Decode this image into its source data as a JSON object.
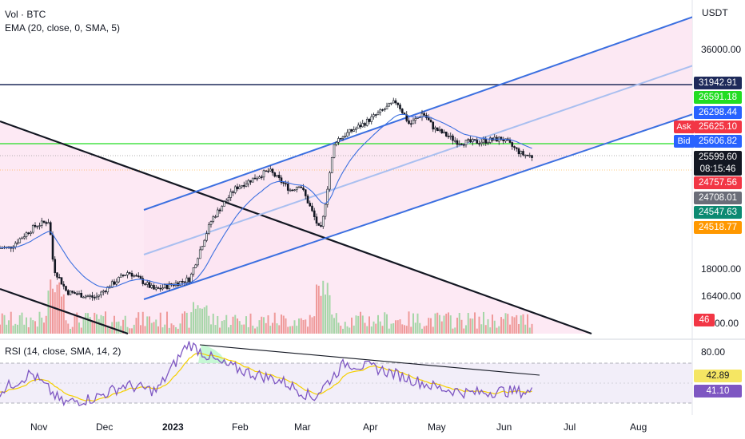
{
  "chart_data": [
    {
      "type": "candlestick",
      "legend": {
        "symbol": "Vol · BTC",
        "indicator": "EMA (20, close, 0, SMA, 5)"
      },
      "currency": "USDT",
      "y_axis_labels": [
        "36000.00",
        "18000.00",
        "16400.00",
        "00.00"
      ],
      "x_axis_labels": [
        "Nov",
        "Dec",
        "2023",
        "Feb",
        "Mar",
        "Apr",
        "May",
        "Jun",
        "Jul",
        "Aug"
      ],
      "price_tags": [
        {
          "label": "31942.91",
          "color": "#1e2a5a"
        },
        {
          "label": "26591.18",
          "color": "#22dd22"
        },
        {
          "label": "26298.44",
          "color": "#2962ff"
        },
        {
          "label": "25625.10",
          "color": "#f23645",
          "side": "Ask"
        },
        {
          "label": "25606.82",
          "color": "#2962ff",
          "side": "Bid"
        },
        {
          "label": "25599.60",
          "color": "#131722"
        },
        {
          "label": "08:15:46",
          "color": "#131722"
        },
        {
          "label": "24757.56",
          "color": "#f23645"
        },
        {
          "label": "24708.01",
          "color": "#6a6d78"
        },
        {
          "label": "24547.63",
          "color": "#0c8a72"
        },
        {
          "label": "24518.77",
          "color": "#ff9800"
        },
        {
          "label": "46",
          "color": "#f23645"
        }
      ],
      "approx_closes": {
        "dates": [
          "Oct 20",
          "Nov 01",
          "Nov 07",
          "Nov 09",
          "Nov 15",
          "Nov 28",
          "Dec 13",
          "Dec 25",
          "Jan 10",
          "Jan 20",
          "Jan 31",
          "Feb 15",
          "Feb 25",
          "Mar 01",
          "Mar 10",
          "Mar 11",
          "Mar 17",
          "Mar 30",
          "Apr 14",
          "Apr 20",
          "Apr 26",
          "May 01",
          "May 12",
          "May 20",
          "Jun 01",
          "Jun 10",
          "Jun 15"
        ],
        "values": [
          19200,
          20600,
          20900,
          18000,
          16700,
          16400,
          17800,
          16800,
          17400,
          21000,
          23200,
          24500,
          23000,
          23500,
          20300,
          20400,
          26900,
          28400,
          30500,
          28300,
          29400,
          28000,
          26800,
          26800,
          27100,
          25800,
          25600
        ]
      },
      "annotations": [
        "horizontal line 31942.91",
        "horizontal line 26591.18",
        "ascending regression channel",
        "descending channel"
      ]
    },
    {
      "type": "line",
      "title": "RSI (14, close, SMA, 14, 2)",
      "y_axis_labels": [
        "80.00"
      ],
      "value_tags": [
        {
          "label": "42.89",
          "color": "#f5e663"
        },
        {
          "label": "41.10",
          "color": "#7e57c2"
        }
      ],
      "rsi_approx": [
        42,
        60,
        30,
        35,
        48,
        42,
        90,
        70,
        60,
        52,
        35,
        70,
        65,
        55,
        45,
        40,
        42,
        41
      ],
      "annotations": [
        "descending trendline from RSI peak"
      ]
    }
  ]
}
